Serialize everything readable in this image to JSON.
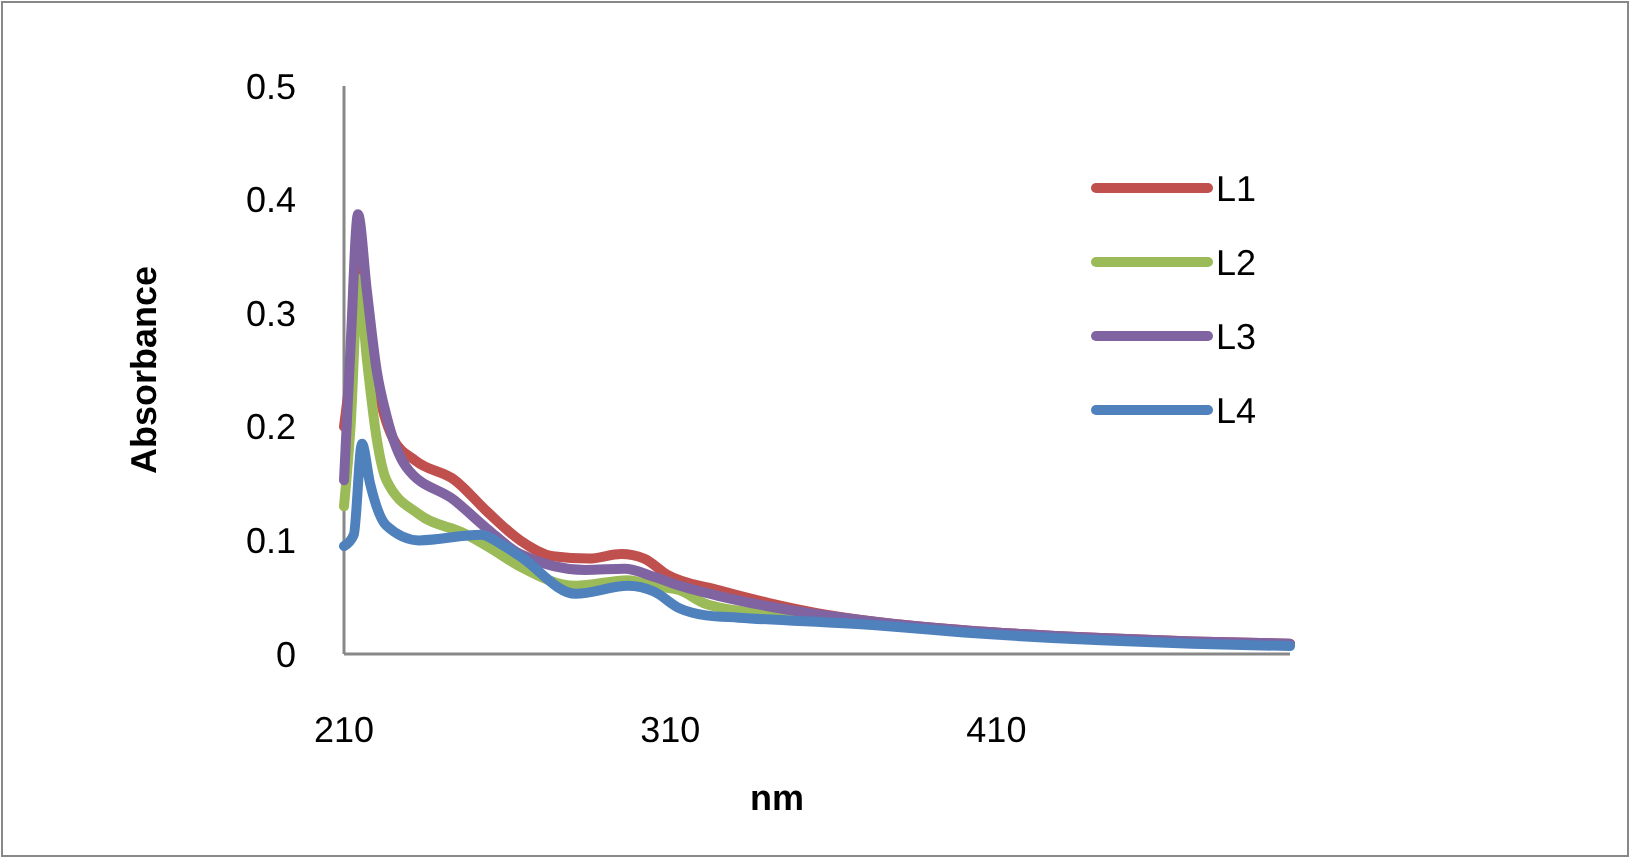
{
  "chart_data": {
    "type": "line",
    "xlabel": "nm",
    "ylabel": "Absorbance",
    "xlim": [
      210,
      500
    ],
    "xticks": [
      210,
      310,
      410
    ],
    "ylim": [
      0,
      0.5
    ],
    "yticks": [
      0,
      0.1,
      0.2,
      0.3,
      0.4,
      0.5
    ],
    "grid": false,
    "legend": "right",
    "marker": "none",
    "line_style": "solid",
    "series": [
      {
        "name": "L1",
        "color": "#c0504d",
        "x": [
          210,
          212,
          214.5,
          217,
          220,
          225,
          232,
          244,
          254,
          264,
          274,
          285,
          295,
          302,
          309,
          325,
          340,
          355,
          374,
          400,
          442,
          470,
          500
        ],
        "values": [
          0.2,
          0.25,
          0.35,
          0.3,
          0.24,
          0.19,
          0.17,
          0.153,
          0.125,
          0.1,
          0.086,
          0.084,
          0.088,
          0.084,
          0.07,
          0.056,
          0.045,
          0.036,
          0.028,
          0.021,
          0.014,
          0.011,
          0.009
        ]
      },
      {
        "name": "L2",
        "color": "#9bbb59",
        "x": [
          210,
          212,
          214.5,
          217,
          220,
          223,
          233,
          247,
          255,
          264,
          281,
          297,
          305,
          313,
          321,
          340,
          374
        ],
        "values": [
          0.13,
          0.2,
          0.33,
          0.26,
          0.19,
          0.153,
          0.123,
          0.106,
          0.093,
          0.077,
          0.06,
          0.065,
          0.06,
          0.056,
          0.044,
          0.035,
          0.026
        ]
      },
      {
        "name": "L3",
        "color": "#8064a2",
        "x": [
          210,
          212,
          214.3,
          217,
          220,
          223,
          229,
          244,
          254,
          264,
          284,
          296,
          305,
          313,
          325,
          340,
          374,
          400,
          442,
          470,
          500
        ],
        "values": [
          0.153,
          0.27,
          0.387,
          0.32,
          0.25,
          0.21,
          0.165,
          0.135,
          0.11,
          0.088,
          0.074,
          0.075,
          0.068,
          0.06,
          0.051,
          0.042,
          0.028,
          0.021,
          0.014,
          0.011,
          0.009
        ]
      },
      {
        "name": "L4",
        "color": "#4f81bd",
        "x": [
          210,
          213,
          215.5,
          218,
          223,
          233,
          252,
          258,
          264,
          281,
          297,
          305,
          313,
          321,
          331,
          374,
          400,
          442,
          470,
          500
        ],
        "values": [
          0.095,
          0.105,
          0.185,
          0.15,
          0.113,
          0.1,
          0.105,
          0.097,
          0.086,
          0.053,
          0.06,
          0.055,
          0.04,
          0.034,
          0.032,
          0.025,
          0.019,
          0.012,
          0.009,
          0.007
        ]
      }
    ]
  }
}
